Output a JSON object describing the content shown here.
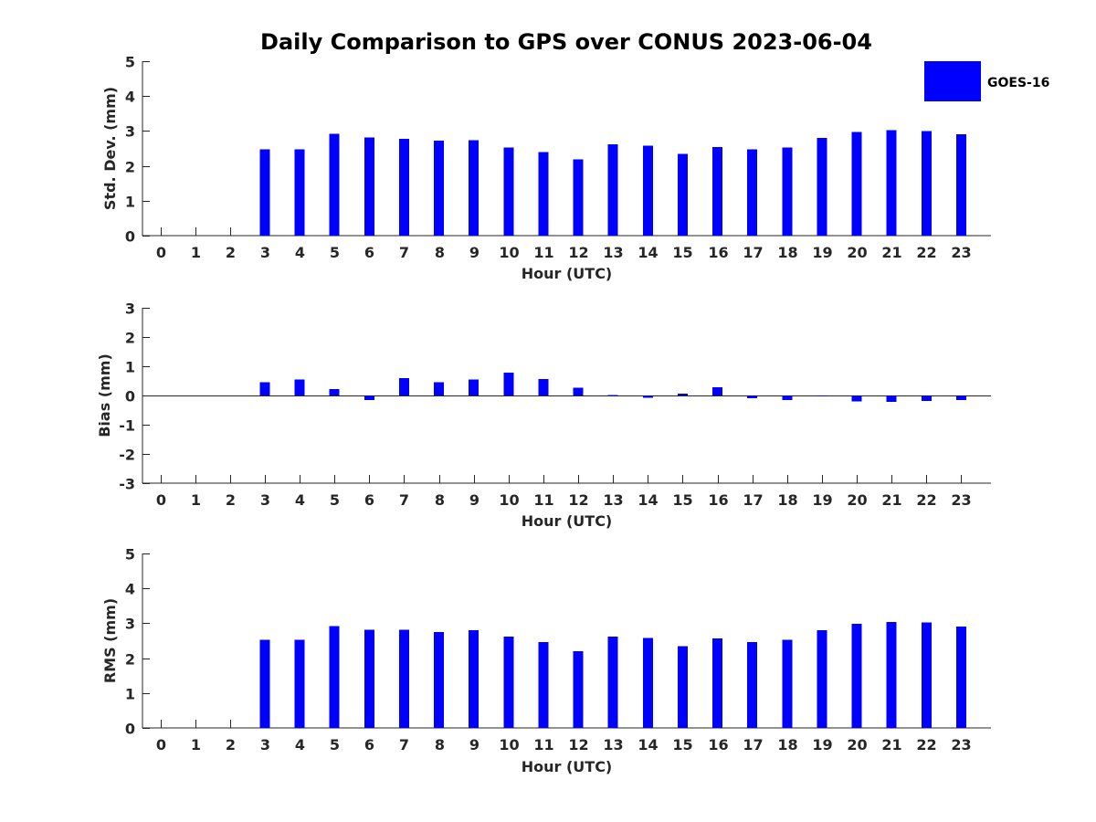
{
  "figure_title": "Daily Comparison to GPS over CONUS 2023-06-04",
  "legend": {
    "label": "GOES-16",
    "color": "#0000ff"
  },
  "chart_data": [
    {
      "type": "bar",
      "name": "std-dev",
      "title": "Daily Comparison to GPS over CONUS 2023-06-04",
      "xlabel": "Hour (UTC)",
      "ylabel": "Std. Dev. (mm)",
      "categories": [
        "0",
        "1",
        "2",
        "3",
        "4",
        "5",
        "6",
        "7",
        "8",
        "9",
        "10",
        "11",
        "12",
        "13",
        "14",
        "15",
        "16",
        "17",
        "18",
        "19",
        "20",
        "21",
        "22",
        "23"
      ],
      "series": [
        {
          "name": "GOES-16",
          "color": "#0000ff",
          "values": [
            null,
            null,
            null,
            2.48,
            2.48,
            2.92,
            2.82,
            2.78,
            2.72,
            2.74,
            2.52,
            2.4,
            2.19,
            2.62,
            2.58,
            2.34,
            2.54,
            2.48,
            2.52,
            2.8,
            2.97,
            3.03,
            3.0,
            2.9
          ]
        }
      ],
      "ylim": [
        0,
        5
      ],
      "yticks": [
        "0",
        "1",
        "2",
        "3",
        "4",
        "5"
      ],
      "legend": "top-right"
    },
    {
      "type": "bar",
      "name": "bias",
      "xlabel": "Hour (UTC)",
      "ylabel": "Bias (mm)",
      "categories": [
        "0",
        "1",
        "2",
        "3",
        "4",
        "5",
        "6",
        "7",
        "8",
        "9",
        "10",
        "11",
        "12",
        "13",
        "14",
        "15",
        "16",
        "17",
        "18",
        "19",
        "20",
        "21",
        "22",
        "23"
      ],
      "series": [
        {
          "name": "GOES-16",
          "color": "#0000ff",
          "values": [
            null,
            null,
            null,
            0.45,
            0.55,
            0.22,
            -0.15,
            0.6,
            0.45,
            0.55,
            0.78,
            0.57,
            0.27,
            0.01,
            -0.08,
            0.07,
            0.28,
            -0.1,
            -0.15,
            0.0,
            -0.2,
            -0.22,
            -0.18,
            -0.15
          ]
        }
      ],
      "ylim": [
        -3,
        3
      ],
      "yticks": [
        "-3",
        "-2",
        "-1",
        "0",
        "1",
        "2",
        "3"
      ]
    },
    {
      "type": "bar",
      "name": "rms",
      "xlabel": "Hour (UTC)",
      "ylabel": "RMS (mm)",
      "categories": [
        "0",
        "1",
        "2",
        "3",
        "4",
        "5",
        "6",
        "7",
        "8",
        "9",
        "10",
        "11",
        "12",
        "13",
        "14",
        "15",
        "16",
        "17",
        "18",
        "19",
        "20",
        "21",
        "22",
        "23"
      ],
      "series": [
        {
          "name": "GOES-16",
          "color": "#0000ff",
          "values": [
            null,
            null,
            null,
            2.52,
            2.52,
            2.92,
            2.82,
            2.82,
            2.75,
            2.8,
            2.62,
            2.46,
            2.2,
            2.62,
            2.58,
            2.34,
            2.56,
            2.46,
            2.52,
            2.8,
            2.98,
            3.04,
            3.02,
            2.9
          ]
        }
      ],
      "ylim": [
        0,
        5
      ],
      "yticks": [
        "0",
        "1",
        "2",
        "3",
        "4",
        "5"
      ]
    }
  ]
}
